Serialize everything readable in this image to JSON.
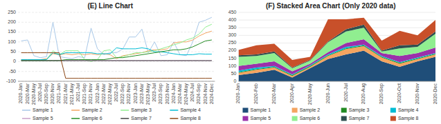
{
  "chart_data": [
    {
      "type": "line",
      "title": "(E) Line Chart",
      "categories": [
        "2020-Jan",
        "2020-Mar",
        "2020-May",
        "2020-Jul",
        "2020-Sep",
        "2020-Nov",
        "2021-Jan",
        "2021-Mar",
        "2021-May",
        "2021-Jul",
        "2021-Sep",
        "2021-Nov",
        "2022-Jan",
        "2022-Mar",
        "2022-May",
        "2022-Jul",
        "2022-Sep",
        "2022-Nov",
        "2023-Jan",
        "2023-Mar",
        "2023-May",
        "2023-Jul",
        "2023-Sep",
        "2023-Nov",
        "2024-Jan",
        "2024-Mar",
        "2024-May",
        "2024-Jul",
        "2024-Sep",
        "2024-Nov",
        "2024-Dec"
      ],
      "series": [
        {
          "name": "Sample 1",
          "color": "#a8c8e8",
          "values": [
            105,
            110,
            30,
            20,
            25,
            200,
            25,
            20,
            15,
            25,
            20,
            170,
            65,
            35,
            45,
            45,
            65,
            125,
            125,
            165,
            45,
            100,
            30,
            35,
            100,
            35,
            30,
            100,
            200,
            210,
            225
          ]
        },
        {
          "name": "Sample 2",
          "color": "#f4a460",
          "values": [
            10,
            10,
            10,
            10,
            15,
            40,
            35,
            40,
            35,
            40,
            35,
            40,
            35,
            40,
            35,
            15,
            30,
            35,
            40,
            45,
            55,
            60,
            60,
            65,
            95,
            100,
            100,
            110,
            130,
            145,
            155
          ]
        },
        {
          "name": "Sample 3",
          "color": "#90ee90",
          "values": [
            5,
            5,
            5,
            5,
            10,
            55,
            35,
            55,
            55,
            55,
            10,
            0,
            10,
            55,
            60,
            20,
            25,
            35,
            45,
            45,
            50,
            55,
            65,
            75,
            85,
            95,
            110,
            120,
            140,
            175,
            190
          ]
        },
        {
          "name": "Sample 4",
          "color": "#00bcd4",
          "values": [
            10,
            10,
            10,
            10,
            10,
            45,
            35,
            45,
            45,
            45,
            45,
            45,
            40,
            40,
            40,
            70,
            65,
            65,
            65,
            70,
            65,
            50,
            50,
            45,
            40,
            35,
            35,
            35,
            40,
            38,
            38
          ]
        },
        {
          "name": "Sample 5",
          "color": "#c8a0c8",
          "values": [
            5,
            5,
            5,
            5,
            5,
            5,
            5,
            5,
            5,
            5,
            5,
            5,
            5,
            5,
            5,
            5,
            5,
            5,
            5,
            5,
            5,
            5,
            5,
            5,
            5,
            5,
            5,
            5,
            5,
            5,
            5
          ]
        },
        {
          "name": "Sample 6",
          "color": "#228b22",
          "values": [
            5,
            5,
            5,
            5,
            5,
            5,
            5,
            10,
            10,
            10,
            10,
            10,
            10,
            10,
            15,
            20,
            20,
            25,
            30,
            35,
            40,
            45,
            50,
            55,
            60,
            60,
            65,
            75,
            90,
            105,
            110
          ]
        },
        {
          "name": "Sample 7",
          "color": "#404040",
          "values": [
            5,
            5,
            5,
            5,
            5,
            5,
            5,
            5,
            5,
            5,
            5,
            5,
            5,
            5,
            5,
            5,
            5,
            5,
            5,
            5,
            5,
            5,
            5,
            5,
            5,
            5,
            5,
            5,
            5,
            5,
            5
          ]
        },
        {
          "name": "Sample 8",
          "color": "#8b4513",
          "values": [
            45,
            45,
            45,
            45,
            45,
            45,
            45,
            -85,
            -85,
            -85,
            -85,
            -85,
            -85,
            -85,
            -85,
            -85,
            -85,
            -85,
            -85,
            -85,
            -85,
            -85,
            -85,
            -85,
            -85,
            -85,
            -85,
            -85,
            -85,
            -85,
            -85
          ]
        }
      ],
      "ylim": [
        -100,
        250
      ],
      "yticks": [
        -100,
        -50,
        0,
        50,
        100,
        150,
        200,
        250
      ],
      "grid": true,
      "legend": "bottom"
    },
    {
      "type": "area",
      "stacked": true,
      "title": "(F) Stacked Area Chart (Only 2020 data)",
      "categories": [
        "2020-Jan",
        "2020-Feb",
        "2020-Mar",
        "2020-Apr",
        "2020-May",
        "2020-Jun",
        "2020-Jul",
        "2020-Aug",
        "2020-Sep",
        "2020-Oct",
        "2020-Nov",
        "2020-Dec"
      ],
      "series": [
        {
          "name": "Sample 1",
          "color": "#1f4e79",
          "values": [
            40,
            55,
            75,
            25,
            85,
            145,
            175,
            200,
            130,
            95,
            130,
            160
          ]
        },
        {
          "name": "Sample 2",
          "color": "#f4a460",
          "values": [
            15,
            20,
            15,
            10,
            10,
            20,
            35,
            30,
            25,
            20,
            15,
            15
          ]
        },
        {
          "name": "Sample 3",
          "color": "#228b22",
          "values": [
            5,
            5,
            5,
            5,
            5,
            5,
            5,
            5,
            5,
            5,
            5,
            5
          ]
        },
        {
          "name": "Sample 4",
          "color": "#00bcd4",
          "values": [
            10,
            10,
            5,
            5,
            5,
            5,
            10,
            5,
            5,
            5,
            5,
            5
          ]
        },
        {
          "name": "Sample 5",
          "color": "#9b30aa",
          "values": [
            30,
            25,
            30,
            20,
            10,
            15,
            25,
            35,
            20,
            40,
            30,
            35
          ]
        },
        {
          "name": "Sample 6",
          "color": "#90ee90",
          "values": [
            60,
            50,
            55,
            20,
            20,
            65,
            75,
            75,
            10,
            50,
            40,
            90
          ]
        },
        {
          "name": "Sample 7",
          "color": "#2f4f4f",
          "values": [
            10,
            10,
            10,
            5,
            5,
            5,
            15,
            20,
            5,
            20,
            15,
            15
          ]
        },
        {
          "name": "Sample 8",
          "color": "#c8502a",
          "values": [
            35,
            60,
            50,
            50,
            20,
            145,
            65,
            45,
            65,
            95,
            60,
            75
          ]
        }
      ],
      "ylim": [
        0,
        450
      ],
      "yticks": [
        0,
        50,
        100,
        150,
        200,
        250,
        300,
        350,
        400,
        450
      ],
      "grid": true,
      "legend": "bottom"
    }
  ]
}
